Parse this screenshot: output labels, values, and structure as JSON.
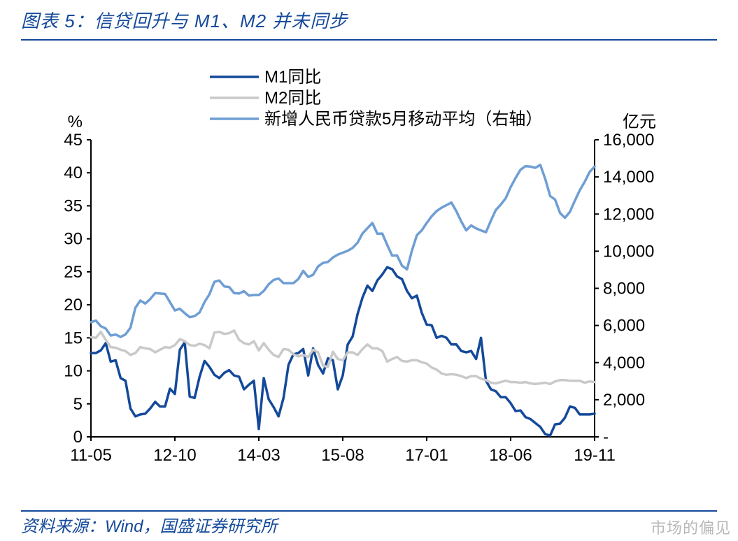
{
  "title": "图表 5：信贷回升与 M1、M2 并未同步",
  "source": "资料来源：Wind，国盛证券研究所",
  "watermark": "市场的偏见",
  "chart": {
    "type": "line-dual-axis",
    "background_color": "#ffffff",
    "axis_color": "#000000",
    "axis_width": 2,
    "tick_fontsize": 24,
    "label_fontsize": 24,
    "legend_fontsize": 24,
    "line_width": 3.5,
    "y_left": {
      "label": "%",
      "min": 0,
      "max": 45,
      "ticks": [
        0,
        5,
        10,
        15,
        20,
        25,
        30,
        35,
        40,
        45
      ]
    },
    "y_right": {
      "label": "亿元",
      "min": 0,
      "max": 16000,
      "ticks": [
        0,
        2000,
        4000,
        6000,
        8000,
        10000,
        12000,
        14000,
        16000
      ],
      "tick_labels": [
        "-",
        "2,000",
        "4,000",
        "6,000",
        "8,000",
        "10,000",
        "12,000",
        "14,000",
        "16,000"
      ]
    },
    "x": {
      "ticks": [
        "11-05",
        "12-10",
        "14-03",
        "15-08",
        "17-01",
        "18-06",
        "19-11"
      ]
    },
    "series": [
      {
        "name": "M1同比",
        "axis": "left",
        "color": "#14499a",
        "data": [
          12.7,
          12.7,
          13.1,
          14.2,
          11.4,
          11.6,
          8.9,
          8.5,
          4.3,
          3.1,
          3.4,
          3.5,
          4.3,
          5.3,
          4.6,
          4.6,
          7.3,
          6.5,
          13.2,
          14.3,
          6.1,
          5.9,
          9.1,
          11.5,
          10.6,
          9.4,
          8.9,
          9.7,
          10.1,
          9.3,
          9.1,
          7.2,
          7.9,
          8.5,
          1.2,
          8.9,
          5.7,
          4.5,
          3.1,
          5.9,
          10.9,
          12.5,
          12.7,
          13.3,
          9.3,
          13.4,
          10.9,
          9.6,
          11.9,
          11.6,
          7.2,
          9.3,
          14.0,
          15.2,
          18.6,
          21.1,
          22.9,
          22.1,
          23.7,
          24.6,
          25.7,
          25.4,
          24.3,
          23.9,
          22.1,
          21.0,
          21.4,
          18.8,
          17.0,
          16.9,
          15.0,
          15.3,
          15.0,
          14.0,
          14.0,
          13.0,
          12.8,
          13.0,
          11.8,
          15.0,
          8.5,
          7.2,
          6.9,
          6.0,
          6.0,
          5.1,
          3.9,
          4.0,
          3.0,
          2.7,
          2.1,
          1.5,
          0.4,
          0.2,
          1.9,
          2.0,
          2.9,
          4.6,
          4.4,
          3.4,
          3.4,
          3.4,
          3.5
        ]
      },
      {
        "name": "M2同比",
        "axis": "left",
        "color": "#c9c9c9",
        "data": [
          15.1,
          15.0,
          15.9,
          14.7,
          13.6,
          13.5,
          13.2,
          13.0,
          12.4,
          12.7,
          13.6,
          13.4,
          13.3,
          12.8,
          13.2,
          13.6,
          13.5,
          13.9,
          14.8,
          14.5,
          13.9,
          13.8,
          14.1,
          13.9,
          13.4,
          15.8,
          15.9,
          15.6,
          15.7,
          16.1,
          14.7,
          14.2,
          14.0,
          14.5,
          13.1,
          14.2,
          13.2,
          12.4,
          12.1,
          13.3,
          13.2,
          12.5,
          12.2,
          12.4,
          12.1,
          13.2,
          12.8,
          10.8,
          10.6,
          12.9,
          11.8,
          11.6,
          12.8,
          12.8,
          12.4,
          13.3,
          14.0,
          13.4,
          13.4,
          13.0,
          11.4,
          11.8,
          12.1,
          11.5,
          11.4,
          11.6,
          11.6,
          11.3,
          11.1,
          10.5,
          10.2,
          9.6,
          9.4,
          9.5,
          9.4,
          9.2,
          8.9,
          9.2,
          9.2,
          8.8,
          8.6,
          8.2,
          8.1,
          8.3,
          8.5,
          8.3,
          8.3,
          8.2,
          8.3,
          8.1,
          8.0,
          8.1,
          8.2,
          8.0,
          8.4,
          8.6,
          8.6,
          8.5,
          8.5,
          8.5,
          8.2,
          8.4,
          8.3
        ]
      },
      {
        "name": "新增人民币贷款5月移动平均（右轴）",
        "axis": "right",
        "color": "#6e9ed4",
        "data": [
          6180,
          6260,
          5960,
          5830,
          5460,
          5510,
          5380,
          5520,
          5880,
          6950,
          7340,
          7180,
          7420,
          7740,
          7720,
          7700,
          7260,
          6810,
          6900,
          6660,
          6450,
          6500,
          6700,
          7260,
          7680,
          8350,
          8420,
          8100,
          8070,
          7740,
          7720,
          7850,
          7610,
          7640,
          7640,
          7860,
          8220,
          8450,
          8530,
          8280,
          8280,
          8280,
          8500,
          8940,
          8610,
          8730,
          9180,
          9370,
          9420,
          9660,
          9820,
          9920,
          10020,
          10180,
          10460,
          10950,
          11240,
          11520,
          10940,
          10950,
          10340,
          9760,
          9770,
          9220,
          9020,
          10020,
          10860,
          11120,
          11520,
          11880,
          12160,
          12340,
          12480,
          12620,
          12150,
          11600,
          11120,
          11390,
          11230,
          11120,
          11020,
          11650,
          12220,
          12510,
          12850,
          13450,
          13950,
          14390,
          14580,
          14560,
          14490,
          14650,
          13900,
          12970,
          12780,
          12060,
          11800,
          12120,
          12720,
          13280,
          13740,
          14270,
          14560
        ]
      }
    ],
    "colors": {
      "m1": "#14499a",
      "m2": "#c9c9c9",
      "credit": "#6e9ed4",
      "title": "#14499a"
    }
  }
}
